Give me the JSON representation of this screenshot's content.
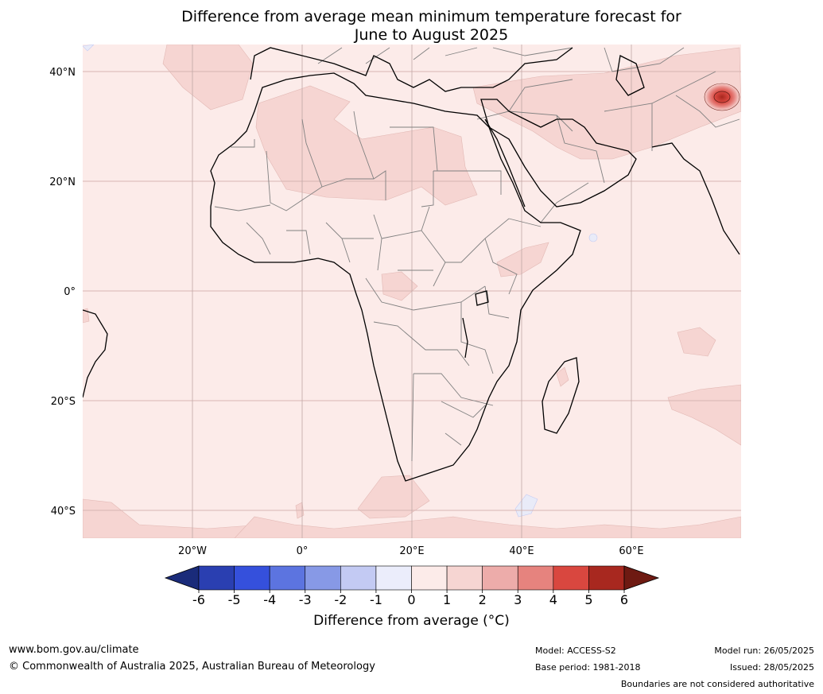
{
  "title": {
    "line1": "Difference from average mean minimum temperature forecast for",
    "line2": "June to August 2025"
  },
  "map": {
    "extent": {
      "lon_min": -40,
      "lon_max": 80,
      "lat_min": -45,
      "lat_max": 45
    },
    "lat_ticks": [
      {
        "value": 40,
        "label": "40°N"
      },
      {
        "value": 20,
        "label": "20°N"
      },
      {
        "value": 0,
        "label": "0°"
      },
      {
        "value": -20,
        "label": "20°S"
      },
      {
        "value": -40,
        "label": "40°S"
      }
    ],
    "lon_ticks": [
      {
        "value": -20,
        "label": "20°W"
      },
      {
        "value": 0,
        "label": "0°"
      },
      {
        "value": 20,
        "label": "20°E"
      },
      {
        "value": 40,
        "label": "40°E"
      },
      {
        "value": 60,
        "label": "60°E"
      }
    ],
    "colors": {
      "background": "#fcebe9",
      "anomaly_1_2": "#f6d5d2",
      "anomaly_cold": "#e9ebf8",
      "grid": "#c8a0a0",
      "coast": "#000000",
      "border": "#808080"
    }
  },
  "colorbar": {
    "title": "Difference from average ($^\\circ$C)",
    "title_display": "Difference from average (°C)",
    "ticks": [
      "-6",
      "-5",
      "-4",
      "-3",
      "-2",
      "-1",
      "0",
      "1",
      "2",
      "3",
      "4",
      "5",
      "6"
    ],
    "colors": [
      "#1a2b7a",
      "#2a3fb1",
      "#3550dc",
      "#5c74e0",
      "#8799e6",
      "#c3caf3",
      "#ebedfb",
      "#fcebe9",
      "#f6d5d2",
      "#edacaa",
      "#e6837e",
      "#d9473f",
      "#a8281f",
      "#6e1a12"
    ]
  },
  "footer": {
    "url": "www.bom.gov.au/climate",
    "copyright": "© Commonwealth of Australia 2025, Australian Bureau of Meteorology",
    "model": "Model: ACCESS-S2",
    "base_period": "Base period: 1981-2018",
    "model_run": "Model run: 26/05/2025",
    "issued": "Issued: 28/05/2025",
    "disclaimer": "Boundaries are not considered authoritative"
  }
}
